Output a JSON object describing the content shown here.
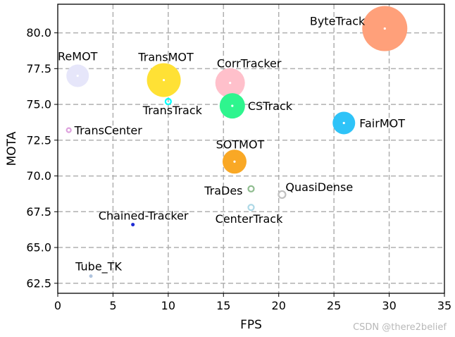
{
  "chart_data": {
    "type": "scatter",
    "xlabel": "FPS",
    "ylabel": "MOTA",
    "xlim": [
      0,
      35
    ],
    "ylim": [
      61.8,
      82.0
    ],
    "xticks": [
      0,
      5,
      10,
      15,
      20,
      25,
      30,
      35
    ],
    "yticks": [
      62.5,
      65.0,
      67.5,
      70.0,
      72.5,
      75.0,
      77.5,
      80.0
    ],
    "grid": true,
    "grid_style": "dashed",
    "points": [
      {
        "name": "ByteTrack",
        "x": 29.6,
        "y": 80.3,
        "size": 32,
        "color": "#FFA07A",
        "ring": false
      },
      {
        "name": "ReMOT",
        "x": 1.8,
        "y": 77.0,
        "size": 16,
        "color": "#E6E6FA",
        "ring": false
      },
      {
        "name": "TransMOT",
        "x": 9.6,
        "y": 76.7,
        "size": 24,
        "color": "#FFE135",
        "ring": false
      },
      {
        "name": "CorrTracker",
        "x": 15.6,
        "y": 76.5,
        "size": 21,
        "color": "#FFC0CB",
        "ring": false
      },
      {
        "name": "TransTrack",
        "x": 10.0,
        "y": 75.2,
        "size": 5,
        "color": "#00FFFF",
        "ring": true
      },
      {
        "name": "CSTrack",
        "x": 15.8,
        "y": 74.9,
        "size": 18,
        "color": "#2EF58E",
        "ring": false
      },
      {
        "name": "FairMOT",
        "x": 25.9,
        "y": 73.7,
        "size": 16,
        "color": "#2EC3F8",
        "ring": false
      },
      {
        "name": "TransCenter",
        "x": 1.0,
        "y": 73.2,
        "size": 4,
        "color": "#DDA0DD",
        "ring": true
      },
      {
        "name": "SOTMOT",
        "x": 16.0,
        "y": 71.0,
        "size": 17,
        "color": "#F9A825",
        "ring": false
      },
      {
        "name": "TraDes",
        "x": 17.5,
        "y": 69.1,
        "size": 5,
        "color": "#8FBC8F",
        "ring": true
      },
      {
        "name": "QuasiDense",
        "x": 20.3,
        "y": 68.7,
        "size": 6,
        "color": "#C0C0C0",
        "ring": true
      },
      {
        "name": "CenterTrack",
        "x": 17.5,
        "y": 67.8,
        "size": 5,
        "color": "#ADD8E6",
        "ring": true
      },
      {
        "name": "Chained-Tracker",
        "x": 6.8,
        "y": 66.6,
        "size": 2.5,
        "color": "#1E2BD4",
        "ring": false
      },
      {
        "name": "Tube_TK",
        "x": 3.0,
        "y": 63.0,
        "size": 2.5,
        "color": "#B0C4DE",
        "ring": false
      }
    ]
  },
  "watermark": "CSDN @there2belief"
}
